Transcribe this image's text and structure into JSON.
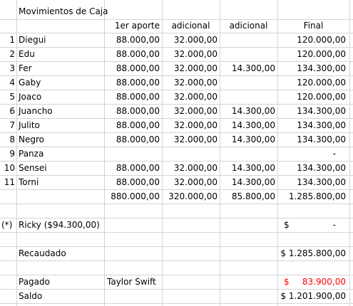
{
  "sheet": {
    "title": "Movimientos de Caja",
    "headers": {
      "first": "1er aporte",
      "extra1": "adicional",
      "extra2": "adicional",
      "final": "Final"
    },
    "rows": [
      {
        "num": "1",
        "name": "Diegui",
        "first": "88.000,00",
        "extra1": "32.000,00",
        "extra2": "",
        "final": "120.000,00"
      },
      {
        "num": "2",
        "name": "Edu",
        "first": "88.000,00",
        "extra1": "32.000,00",
        "extra2": "",
        "final": "120.000,00"
      },
      {
        "num": "3",
        "name": "Fer",
        "first": "88.000,00",
        "extra1": "32.000,00",
        "extra2": "14.300,00",
        "final": "134.300,00"
      },
      {
        "num": "4",
        "name": "Gaby",
        "first": "88.000,00",
        "extra1": "32.000,00",
        "extra2": "",
        "final": "120.000,00"
      },
      {
        "num": "5",
        "name": "Joaco",
        "first": "88.000,00",
        "extra1": "32.000,00",
        "extra2": "",
        "final": "120.000,00"
      },
      {
        "num": "6",
        "name": "Juancho",
        "first": "88.000,00",
        "extra1": "32.000,00",
        "extra2": "14.300,00",
        "final": "134.300,00"
      },
      {
        "num": "7",
        "name": "Julito",
        "first": "88.000,00",
        "extra1": "32.000,00",
        "extra2": "14.300,00",
        "final": "134.300,00"
      },
      {
        "num": "8",
        "name": "Negro",
        "first": "88.000,00",
        "extra1": "32.000,00",
        "extra2": "14.300,00",
        "final": "134.300,00"
      },
      {
        "num": "9",
        "name": "Panza",
        "first": "",
        "extra1": "",
        "extra2": "",
        "final": "-"
      },
      {
        "num": "10",
        "name": "Sensei",
        "first": "88.000,00",
        "extra1": "32.000,00",
        "extra2": "14.300,00",
        "final": "134.300,00"
      },
      {
        "num": "11",
        "name": "Torni",
        "first": "88.000,00",
        "extra1": "32.000,00",
        "extra2": "14.300,00",
        "final": "134.300,00"
      }
    ],
    "totals": {
      "first": "880.000,00",
      "extra1": "320.000,00",
      "extra2": "85.800,00",
      "final": "1.285.800,00"
    },
    "ricky": {
      "mark": "(*)",
      "label": "Ricky ($94.300,00)",
      "currency": "$",
      "value": "-"
    },
    "recaudado": {
      "label": "Recaudado",
      "value": "$ 1.285.800,00"
    },
    "pagado": {
      "label": "Pagado",
      "payee": "Taylor Swift",
      "currency": "$",
      "value": "83.900,00"
    },
    "saldo": {
      "label": "Saldo",
      "value": "$ 1.201.900,00"
    }
  }
}
